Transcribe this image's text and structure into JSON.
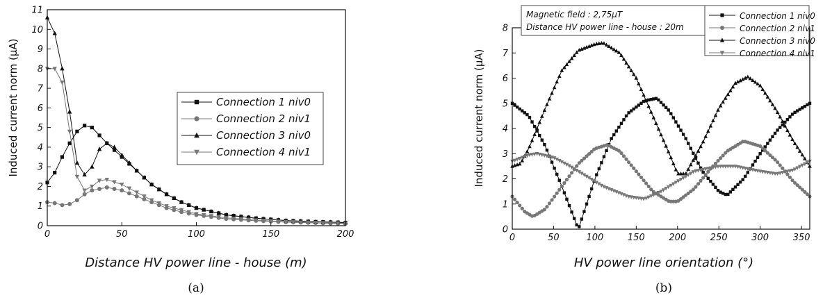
{
  "chart_data": [
    {
      "type": "line",
      "xlabel": "Distance HV power line - house (m)",
      "ylabel": "Induced current norm (μA)",
      "caption": "(a)",
      "xlim": [
        0,
        200
      ],
      "ylim": [
        0,
        11
      ],
      "x_ticks": [
        "0",
        "50",
        "100",
        "150",
        "200"
      ],
      "y_ticks": [
        "0",
        "1",
        "2",
        "3",
        "4",
        "5",
        "6",
        "7",
        "8",
        "9",
        "10",
        "11"
      ],
      "legend_position": "center-right",
      "series": [
        {
          "name": "Connection 1 niv0",
          "marker": "square",
          "color": "#111111",
          "points": [
            [
              0,
              2.2
            ],
            [
              5,
              2.7
            ],
            [
              10,
              3.5
            ],
            [
              15,
              4.2
            ],
            [
              20,
              4.8
            ],
            [
              25,
              5.1
            ],
            [
              30,
              5.0
            ],
            [
              35,
              4.6
            ],
            [
              40,
              4.2
            ],
            [
              50,
              3.5
            ],
            [
              60,
              2.8
            ],
            [
              70,
              2.1
            ],
            [
              80,
              1.6
            ],
            [
              90,
              1.2
            ],
            [
              100,
              0.9
            ],
            [
              120,
              0.55
            ],
            [
              140,
              0.38
            ],
            [
              160,
              0.26
            ],
            [
              180,
              0.2
            ],
            [
              200,
              0.16
            ]
          ]
        },
        {
          "name": "Connection 2 niv1",
          "marker": "circle",
          "color": "#777777",
          "points": [
            [
              0,
              1.2
            ],
            [
              5,
              1.15
            ],
            [
              10,
              1.05
            ],
            [
              15,
              1.1
            ],
            [
              20,
              1.3
            ],
            [
              25,
              1.6
            ],
            [
              30,
              1.8
            ],
            [
              40,
              1.95
            ],
            [
              50,
              1.8
            ],
            [
              60,
              1.5
            ],
            [
              70,
              1.2
            ],
            [
              80,
              0.9
            ],
            [
              90,
              0.7
            ],
            [
              100,
              0.55
            ],
            [
              120,
              0.35
            ],
            [
              140,
              0.25
            ],
            [
              160,
              0.18
            ],
            [
              180,
              0.14
            ],
            [
              200,
              0.1
            ]
          ]
        },
        {
          "name": "Connection 3 niv0",
          "marker": "triangle-up",
          "color": "#111111",
          "points": [
            [
              0,
              10.6
            ],
            [
              5,
              9.8
            ],
            [
              10,
              8.0
            ],
            [
              15,
              5.8
            ],
            [
              20,
              3.2
            ],
            [
              25,
              2.6
            ],
            [
              30,
              3.0
            ],
            [
              35,
              3.9
            ],
            [
              40,
              4.2
            ],
            [
              45,
              4.0
            ],
            [
              50,
              3.6
            ],
            [
              60,
              2.8
            ],
            [
              70,
              2.1
            ],
            [
              80,
              1.6
            ],
            [
              90,
              1.2
            ],
            [
              100,
              0.9
            ],
            [
              120,
              0.55
            ],
            [
              140,
              0.38
            ],
            [
              160,
              0.26
            ],
            [
              180,
              0.2
            ],
            [
              200,
              0.16
            ]
          ]
        },
        {
          "name": "Connection 4 niv1",
          "marker": "triangle-down",
          "color": "#777777",
          "points": [
            [
              0,
              8.0
            ],
            [
              5,
              8.0
            ],
            [
              10,
              7.3
            ],
            [
              15,
              4.8
            ],
            [
              20,
              2.5
            ],
            [
              25,
              1.8
            ],
            [
              30,
              2.0
            ],
            [
              35,
              2.3
            ],
            [
              40,
              2.35
            ],
            [
              50,
              2.1
            ],
            [
              60,
              1.7
            ],
            [
              70,
              1.3
            ],
            [
              80,
              1.0
            ],
            [
              90,
              0.8
            ],
            [
              100,
              0.6
            ],
            [
              120,
              0.4
            ],
            [
              140,
              0.28
            ],
            [
              160,
              0.2
            ],
            [
              180,
              0.15
            ],
            [
              200,
              0.12
            ]
          ]
        }
      ]
    },
    {
      "type": "line",
      "xlabel": "HV power line orientation (°)",
      "ylabel": "Induced current norm (μA)",
      "caption": "(b)",
      "xlim": [
        0,
        360
      ],
      "ylim": [
        0,
        8
      ],
      "x_ticks": [
        "0",
        "50",
        "100",
        "150",
        "200",
        "250",
        "300",
        "350"
      ],
      "y_ticks": [
        "0",
        "1",
        "2",
        "3",
        "4",
        "5",
        "6",
        "7",
        "8"
      ],
      "legend_position": "top-right",
      "annotation": [
        "Magnetic field : 2,75μT",
        "Distance HV power line - house : 20m"
      ],
      "series": [
        {
          "name": "Connection 1 niv0",
          "marker": "square",
          "color": "#111111",
          "points": [
            [
              0,
              5.0
            ],
            [
              20,
              4.5
            ],
            [
              40,
              3.3
            ],
            [
              60,
              1.7
            ],
            [
              80,
              0.0
            ],
            [
              100,
              2.0
            ],
            [
              120,
              3.6
            ],
            [
              140,
              4.6
            ],
            [
              160,
              5.1
            ],
            [
              175,
              5.2
            ],
            [
              190,
              4.7
            ],
            [
              210,
              3.6
            ],
            [
              230,
              2.3
            ],
            [
              250,
              1.5
            ],
            [
              260,
              1.35
            ],
            [
              280,
              2.0
            ],
            [
              300,
              3.0
            ],
            [
              320,
              3.9
            ],
            [
              340,
              4.6
            ],
            [
              360,
              5.0
            ]
          ]
        },
        {
          "name": "Connection 2 niv1",
          "marker": "circle",
          "color": "#777777",
          "points": [
            [
              0,
              1.3
            ],
            [
              15,
              0.7
            ],
            [
              25,
              0.5
            ],
            [
              40,
              0.8
            ],
            [
              60,
              1.7
            ],
            [
              80,
              2.6
            ],
            [
              100,
              3.2
            ],
            [
              115,
              3.35
            ],
            [
              130,
              3.1
            ],
            [
              150,
              2.3
            ],
            [
              170,
              1.5
            ],
            [
              190,
              1.1
            ],
            [
              200,
              1.1
            ],
            [
              220,
              1.6
            ],
            [
              240,
              2.4
            ],
            [
              260,
              3.1
            ],
            [
              280,
              3.5
            ],
            [
              300,
              3.3
            ],
            [
              320,
              2.7
            ],
            [
              340,
              1.9
            ],
            [
              360,
              1.3
            ]
          ]
        },
        {
          "name": "Connection 3 niv0",
          "marker": "triangle-up",
          "color": "#111111",
          "points": [
            [
              0,
              2.5
            ],
            [
              10,
              2.6
            ],
            [
              20,
              3.2
            ],
            [
              40,
              4.8
            ],
            [
              60,
              6.3
            ],
            [
              80,
              7.1
            ],
            [
              100,
              7.35
            ],
            [
              110,
              7.4
            ],
            [
              130,
              7.0
            ],
            [
              150,
              6.0
            ],
            [
              170,
              4.5
            ],
            [
              190,
              3.0
            ],
            [
              200,
              2.2
            ],
            [
              210,
              2.2
            ],
            [
              230,
              3.4
            ],
            [
              250,
              4.8
            ],
            [
              270,
              5.8
            ],
            [
              285,
              6.05
            ],
            [
              300,
              5.7
            ],
            [
              320,
              4.7
            ],
            [
              340,
              3.5
            ],
            [
              360,
              2.5
            ]
          ]
        },
        {
          "name": "Connection 4 niv1",
          "marker": "triangle-down",
          "color": "#777777",
          "points": [
            [
              0,
              2.7
            ],
            [
              20,
              2.95
            ],
            [
              30,
              3.0
            ],
            [
              50,
              2.85
            ],
            [
              70,
              2.5
            ],
            [
              90,
              2.1
            ],
            [
              110,
              1.7
            ],
            [
              140,
              1.3
            ],
            [
              160,
              1.2
            ],
            [
              180,
              1.5
            ],
            [
              200,
              1.9
            ],
            [
              220,
              2.3
            ],
            [
              250,
              2.5
            ],
            [
              270,
              2.5
            ],
            [
              300,
              2.3
            ],
            [
              320,
              2.2
            ],
            [
              340,
              2.35
            ],
            [
              360,
              2.7
            ]
          ]
        }
      ]
    }
  ]
}
